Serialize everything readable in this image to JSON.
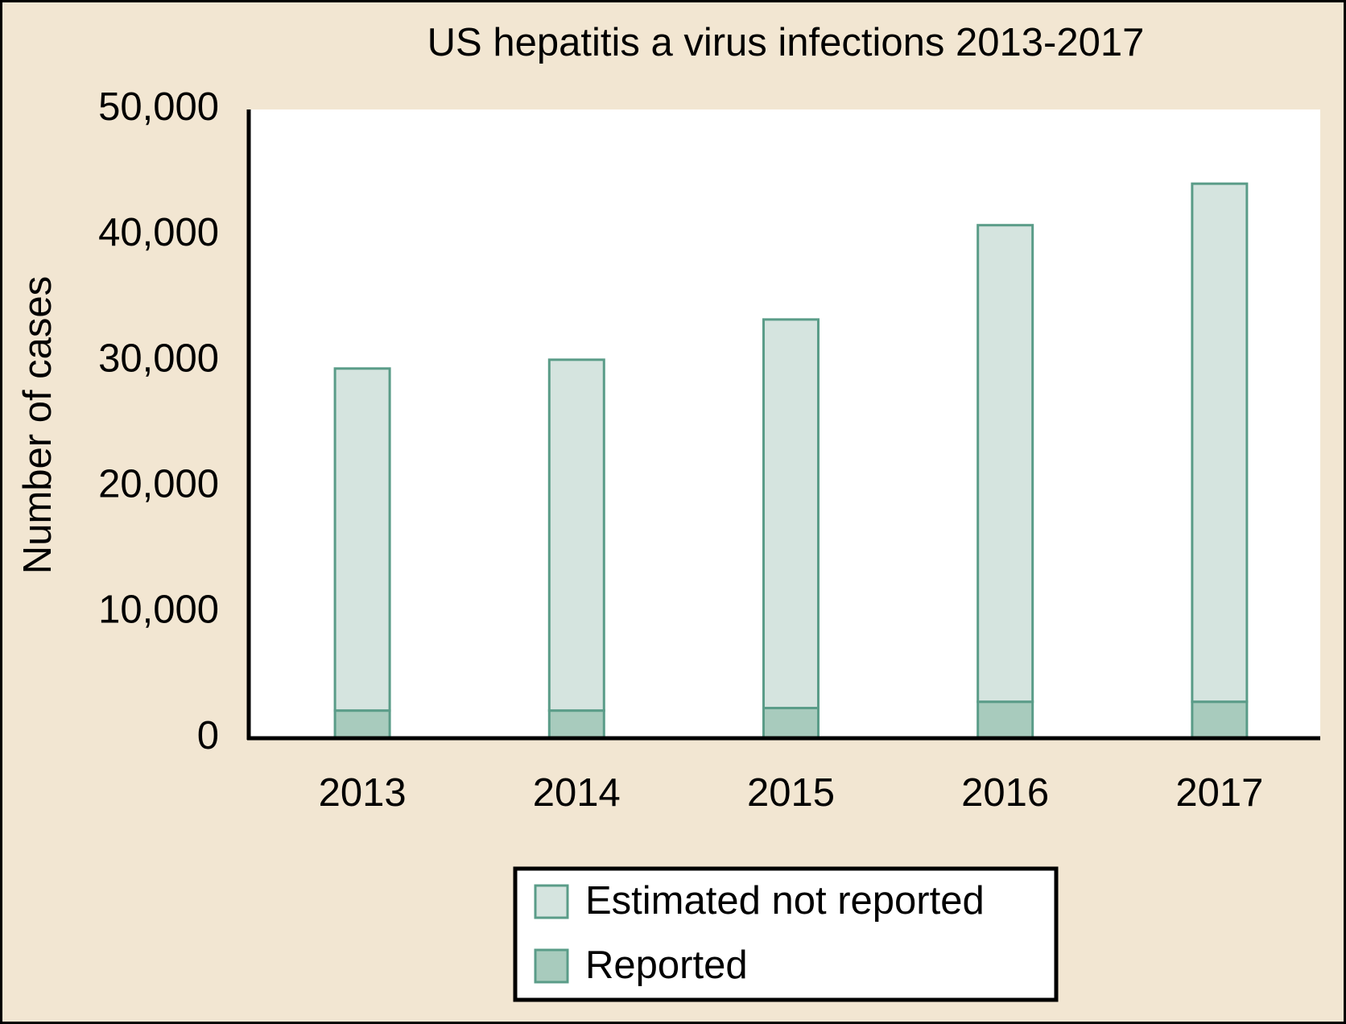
{
  "chart_data": {
    "type": "stacked-bar",
    "title": "US hepatitis a virus infections 2013-2017",
    "y_label": "Number of cases",
    "categories": [
      "2013",
      "2014",
      "2015",
      "2016",
      "2017"
    ],
    "series": [
      {
        "name": "Reported",
        "color": "#a8cbbd",
        "values": [
          2200,
          2200,
          2400,
          2900,
          2900
        ]
      },
      {
        "name": "Estimated not reported",
        "color": "#d5e4df",
        "values": [
          27200,
          27900,
          30900,
          37900,
          41200
        ]
      }
    ],
    "ylim": [
      0,
      50000
    ],
    "yticks": [
      0,
      {
        "value": 10000,
        "label": "10,000"
      },
      {
        "value": 20000,
        "label": "20,000"
      },
      {
        "value": 30000,
        "label": "30,000"
      },
      {
        "value": 40000,
        "label": "40,000"
      },
      {
        "value": 50000,
        "label": "50,000"
      }
    ],
    "grid": false
  }
}
